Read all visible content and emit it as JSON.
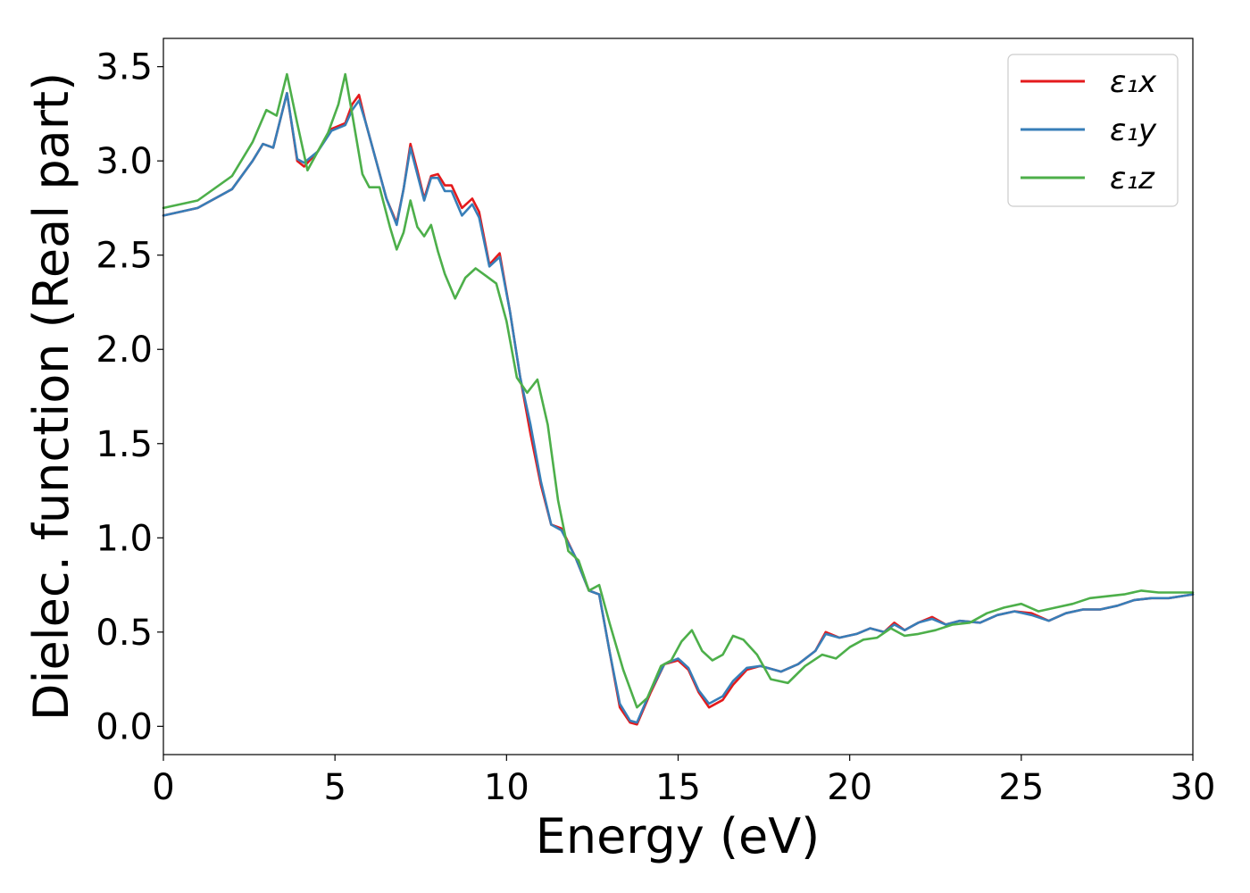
{
  "chart_data": {
    "type": "line",
    "title": "",
    "xlabel": "Energy (eV)",
    "ylabel": "Dielec. function (Real part)",
    "xlim": [
      0,
      30
    ],
    "ylim": [
      -0.15,
      3.65
    ],
    "xticks": [
      0,
      5,
      10,
      15,
      20,
      25,
      30
    ],
    "xtick_labels": [
      "0",
      "5",
      "10",
      "15",
      "20",
      "25",
      "30"
    ],
    "yticks": [
      0.0,
      0.5,
      1.0,
      1.5,
      2.0,
      2.5,
      3.0,
      3.5
    ],
    "ytick_labels": [
      "0.0",
      "0.5",
      "1.0",
      "1.5",
      "2.0",
      "2.5",
      "3.0",
      "3.5"
    ],
    "grid": false,
    "legend_position": "top-right",
    "series": [
      {
        "name": "ε₁x",
        "color": "#e41a1c",
        "points": [
          [
            0,
            2.71
          ],
          [
            1,
            2.75
          ],
          [
            2,
            2.85
          ],
          [
            2.6,
            3.0
          ],
          [
            2.9,
            3.09
          ],
          [
            3.2,
            3.07
          ],
          [
            3.6,
            3.36
          ],
          [
            3.9,
            3.0
          ],
          [
            4.1,
            2.97
          ],
          [
            4.5,
            3.05
          ],
          [
            4.9,
            3.17
          ],
          [
            5.3,
            3.2
          ],
          [
            5.5,
            3.3
          ],
          [
            5.7,
            3.35
          ],
          [
            5.9,
            3.2
          ],
          [
            6.2,
            3.0
          ],
          [
            6.5,
            2.8
          ],
          [
            6.8,
            2.67
          ],
          [
            7.0,
            2.85
          ],
          [
            7.2,
            3.09
          ],
          [
            7.4,
            2.95
          ],
          [
            7.6,
            2.8
          ],
          [
            7.8,
            2.92
          ],
          [
            8.0,
            2.93
          ],
          [
            8.2,
            2.87
          ],
          [
            8.4,
            2.87
          ],
          [
            8.7,
            2.75
          ],
          [
            9.0,
            2.8
          ],
          [
            9.2,
            2.73
          ],
          [
            9.5,
            2.45
          ],
          [
            9.8,
            2.51
          ],
          [
            10.1,
            2.2
          ],
          [
            10.4,
            1.85
          ],
          [
            10.7,
            1.55
          ],
          [
            11.0,
            1.28
          ],
          [
            11.3,
            1.07
          ],
          [
            11.6,
            1.05
          ],
          [
            12.0,
            0.9
          ],
          [
            12.4,
            0.72
          ],
          [
            12.7,
            0.7
          ],
          [
            13.0,
            0.4
          ],
          [
            13.3,
            0.1
          ],
          [
            13.6,
            0.02
          ],
          [
            13.8,
            0.01
          ],
          [
            14.2,
            0.18
          ],
          [
            14.6,
            0.33
          ],
          [
            15.0,
            0.35
          ],
          [
            15.3,
            0.3
          ],
          [
            15.6,
            0.18
          ],
          [
            15.9,
            0.1
          ],
          [
            16.3,
            0.14
          ],
          [
            16.6,
            0.22
          ],
          [
            17.0,
            0.3
          ],
          [
            17.4,
            0.32
          ],
          [
            18.0,
            0.29
          ],
          [
            18.5,
            0.33
          ],
          [
            19.0,
            0.4
          ],
          [
            19.3,
            0.5
          ],
          [
            19.7,
            0.47
          ],
          [
            20.2,
            0.49
          ],
          [
            20.6,
            0.52
          ],
          [
            21.0,
            0.5
          ],
          [
            21.3,
            0.55
          ],
          [
            21.6,
            0.51
          ],
          [
            22.0,
            0.55
          ],
          [
            22.4,
            0.58
          ],
          [
            22.8,
            0.54
          ],
          [
            23.2,
            0.56
          ],
          [
            23.8,
            0.55
          ],
          [
            24.3,
            0.59
          ],
          [
            24.8,
            0.61
          ],
          [
            25.3,
            0.6
          ],
          [
            25.8,
            0.56
          ],
          [
            26.3,
            0.6
          ],
          [
            26.8,
            0.62
          ],
          [
            27.3,
            0.62
          ],
          [
            27.8,
            0.64
          ],
          [
            28.3,
            0.67
          ],
          [
            28.8,
            0.68
          ],
          [
            29.3,
            0.68
          ],
          [
            30.0,
            0.7
          ]
        ]
      },
      {
        "name": "ε₁y",
        "color": "#377eb8",
        "points": [
          [
            0,
            2.71
          ],
          [
            1,
            2.75
          ],
          [
            2,
            2.85
          ],
          [
            2.6,
            3.0
          ],
          [
            2.9,
            3.09
          ],
          [
            3.2,
            3.07
          ],
          [
            3.6,
            3.36
          ],
          [
            3.9,
            3.01
          ],
          [
            4.1,
            2.99
          ],
          [
            4.5,
            3.05
          ],
          [
            4.9,
            3.16
          ],
          [
            5.3,
            3.19
          ],
          [
            5.5,
            3.27
          ],
          [
            5.7,
            3.32
          ],
          [
            5.9,
            3.2
          ],
          [
            6.2,
            3.0
          ],
          [
            6.5,
            2.8
          ],
          [
            6.8,
            2.66
          ],
          [
            7.0,
            2.85
          ],
          [
            7.2,
            3.07
          ],
          [
            7.4,
            2.93
          ],
          [
            7.6,
            2.79
          ],
          [
            7.8,
            2.91
          ],
          [
            8.0,
            2.91
          ],
          [
            8.2,
            2.84
          ],
          [
            8.4,
            2.84
          ],
          [
            8.7,
            2.71
          ],
          [
            9.0,
            2.77
          ],
          [
            9.2,
            2.7
          ],
          [
            9.5,
            2.44
          ],
          [
            9.8,
            2.49
          ],
          [
            10.1,
            2.2
          ],
          [
            10.4,
            1.85
          ],
          [
            10.7,
            1.6
          ],
          [
            11.0,
            1.3
          ],
          [
            11.3,
            1.07
          ],
          [
            11.6,
            1.04
          ],
          [
            12.0,
            0.9
          ],
          [
            12.4,
            0.72
          ],
          [
            12.7,
            0.7
          ],
          [
            13.0,
            0.4
          ],
          [
            13.3,
            0.12
          ],
          [
            13.6,
            0.03
          ],
          [
            13.8,
            0.02
          ],
          [
            14.2,
            0.19
          ],
          [
            14.6,
            0.33
          ],
          [
            15.0,
            0.36
          ],
          [
            15.3,
            0.31
          ],
          [
            15.6,
            0.19
          ],
          [
            15.9,
            0.12
          ],
          [
            16.3,
            0.16
          ],
          [
            16.6,
            0.24
          ],
          [
            17.0,
            0.31
          ],
          [
            17.4,
            0.32
          ],
          [
            18.0,
            0.29
          ],
          [
            18.5,
            0.33
          ],
          [
            19.0,
            0.4
          ],
          [
            19.3,
            0.49
          ],
          [
            19.7,
            0.47
          ],
          [
            20.2,
            0.49
          ],
          [
            20.6,
            0.52
          ],
          [
            21.0,
            0.5
          ],
          [
            21.3,
            0.54
          ],
          [
            21.6,
            0.51
          ],
          [
            22.0,
            0.55
          ],
          [
            22.4,
            0.57
          ],
          [
            22.8,
            0.54
          ],
          [
            23.2,
            0.56
          ],
          [
            23.8,
            0.55
          ],
          [
            24.3,
            0.59
          ],
          [
            24.8,
            0.61
          ],
          [
            25.3,
            0.59
          ],
          [
            25.8,
            0.56
          ],
          [
            26.3,
            0.6
          ],
          [
            26.8,
            0.62
          ],
          [
            27.3,
            0.62
          ],
          [
            27.8,
            0.64
          ],
          [
            28.3,
            0.67
          ],
          [
            28.8,
            0.68
          ],
          [
            29.3,
            0.68
          ],
          [
            30.0,
            0.7
          ]
        ]
      },
      {
        "name": "ε₁z",
        "color": "#4daf4a",
        "points": [
          [
            0,
            2.75
          ],
          [
            1,
            2.79
          ],
          [
            2,
            2.92
          ],
          [
            2.6,
            3.1
          ],
          [
            3.0,
            3.27
          ],
          [
            3.3,
            3.24
          ],
          [
            3.6,
            3.46
          ],
          [
            3.9,
            3.2
          ],
          [
            4.2,
            2.95
          ],
          [
            4.5,
            3.05
          ],
          [
            4.8,
            3.15
          ],
          [
            5.1,
            3.3
          ],
          [
            5.3,
            3.46
          ],
          [
            5.5,
            3.25
          ],
          [
            5.8,
            2.93
          ],
          [
            6.0,
            2.86
          ],
          [
            6.3,
            2.86
          ],
          [
            6.6,
            2.65
          ],
          [
            6.8,
            2.53
          ],
          [
            7.0,
            2.62
          ],
          [
            7.2,
            2.79
          ],
          [
            7.4,
            2.65
          ],
          [
            7.6,
            2.6
          ],
          [
            7.8,
            2.66
          ],
          [
            8.0,
            2.52
          ],
          [
            8.2,
            2.4
          ],
          [
            8.5,
            2.27
          ],
          [
            8.8,
            2.38
          ],
          [
            9.1,
            2.43
          ],
          [
            9.4,
            2.39
          ],
          [
            9.7,
            2.35
          ],
          [
            10.0,
            2.15
          ],
          [
            10.3,
            1.85
          ],
          [
            10.6,
            1.77
          ],
          [
            10.9,
            1.84
          ],
          [
            11.2,
            1.6
          ],
          [
            11.5,
            1.2
          ],
          [
            11.8,
            0.93
          ],
          [
            12.1,
            0.88
          ],
          [
            12.4,
            0.72
          ],
          [
            12.7,
            0.75
          ],
          [
            13.0,
            0.55
          ],
          [
            13.4,
            0.3
          ],
          [
            13.8,
            0.1
          ],
          [
            14.1,
            0.15
          ],
          [
            14.5,
            0.32
          ],
          [
            14.8,
            0.35
          ],
          [
            15.1,
            0.45
          ],
          [
            15.4,
            0.51
          ],
          [
            15.7,
            0.4
          ],
          [
            16.0,
            0.35
          ],
          [
            16.3,
            0.38
          ],
          [
            16.6,
            0.48
          ],
          [
            16.9,
            0.46
          ],
          [
            17.3,
            0.38
          ],
          [
            17.7,
            0.25
          ],
          [
            18.2,
            0.23
          ],
          [
            18.7,
            0.32
          ],
          [
            19.2,
            0.38
          ],
          [
            19.6,
            0.36
          ],
          [
            20.0,
            0.42
          ],
          [
            20.4,
            0.46
          ],
          [
            20.8,
            0.47
          ],
          [
            21.2,
            0.52
          ],
          [
            21.6,
            0.48
          ],
          [
            22.0,
            0.49
          ],
          [
            22.5,
            0.51
          ],
          [
            23.0,
            0.54
          ],
          [
            23.5,
            0.55
          ],
          [
            24.0,
            0.6
          ],
          [
            24.5,
            0.63
          ],
          [
            25.0,
            0.65
          ],
          [
            25.5,
            0.61
          ],
          [
            26.0,
            0.63
          ],
          [
            26.5,
            0.65
          ],
          [
            27.0,
            0.68
          ],
          [
            27.5,
            0.69
          ],
          [
            28.0,
            0.7
          ],
          [
            28.5,
            0.72
          ],
          [
            29.0,
            0.71
          ],
          [
            29.5,
            0.71
          ],
          [
            30.0,
            0.71
          ]
        ]
      }
    ]
  }
}
